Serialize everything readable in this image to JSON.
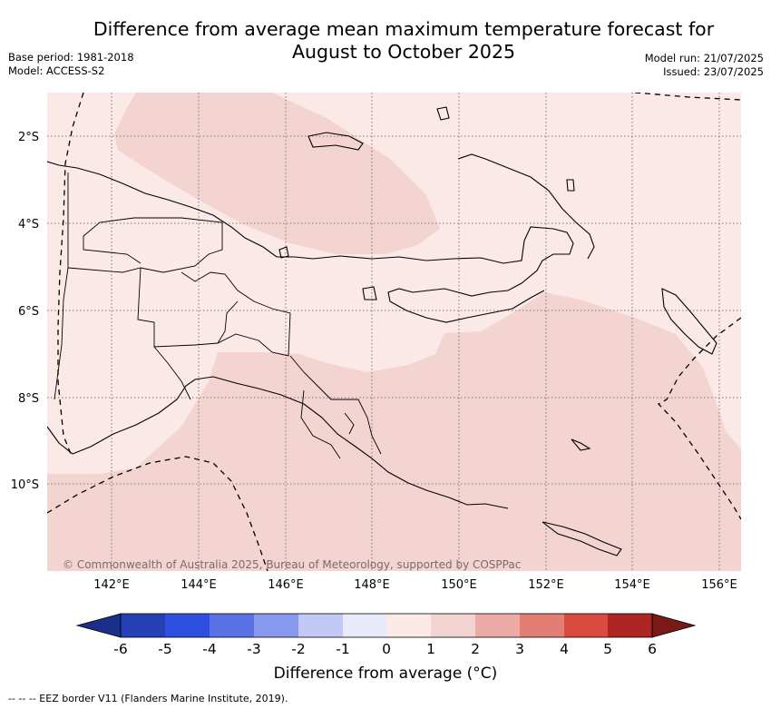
{
  "header": {
    "title_line1": "Difference from average mean maximum temperature forecast for",
    "title_line2": "August to October 2025",
    "base_period": "Base period: 1981-2018",
    "model": "Model: ACCESS-S2",
    "model_run": "Model run: 21/07/2025",
    "issued": "Issued: 23/07/2025"
  },
  "map": {
    "lat_labels": [
      "2°S",
      "4°S",
      "6°S",
      "8°S",
      "10°S"
    ],
    "lon_labels": [
      "142°E",
      "144°E",
      "146°E",
      "148°E",
      "150°E",
      "152°E",
      "154°E",
      "156°E"
    ],
    "copyright": "© Commonwealth of Australia 2025, Bureau of Meteorology, supported by COSPPac",
    "region_classes": [
      {
        "category": "0 to 1",
        "color": "#fbe9e7"
      },
      {
        "category": "1 to 2",
        "color": "#f4d4d0"
      }
    ]
  },
  "colorbar": {
    "ticks": [
      "-6",
      "-5",
      "-4",
      "-3",
      "-2",
      "-1",
      "0",
      "1",
      "2",
      "3",
      "4",
      "5",
      "6"
    ],
    "colors": [
      "#1b2e8a",
      "#2440b4",
      "#2f4fe0",
      "#5a72e6",
      "#8799ee",
      "#c2c9f6",
      "#e8eaf9",
      "#fbe9e7",
      "#f4d4d0",
      "#eeaaa4",
      "#e37e75",
      "#da4a3e",
      "#ad2624",
      "#7a1a18"
    ],
    "label": "Difference from average (°C)"
  },
  "footer": {
    "legend_note": "--  --  -- EEZ border V11 (Flanders Marine Institute, 2019)."
  }
}
